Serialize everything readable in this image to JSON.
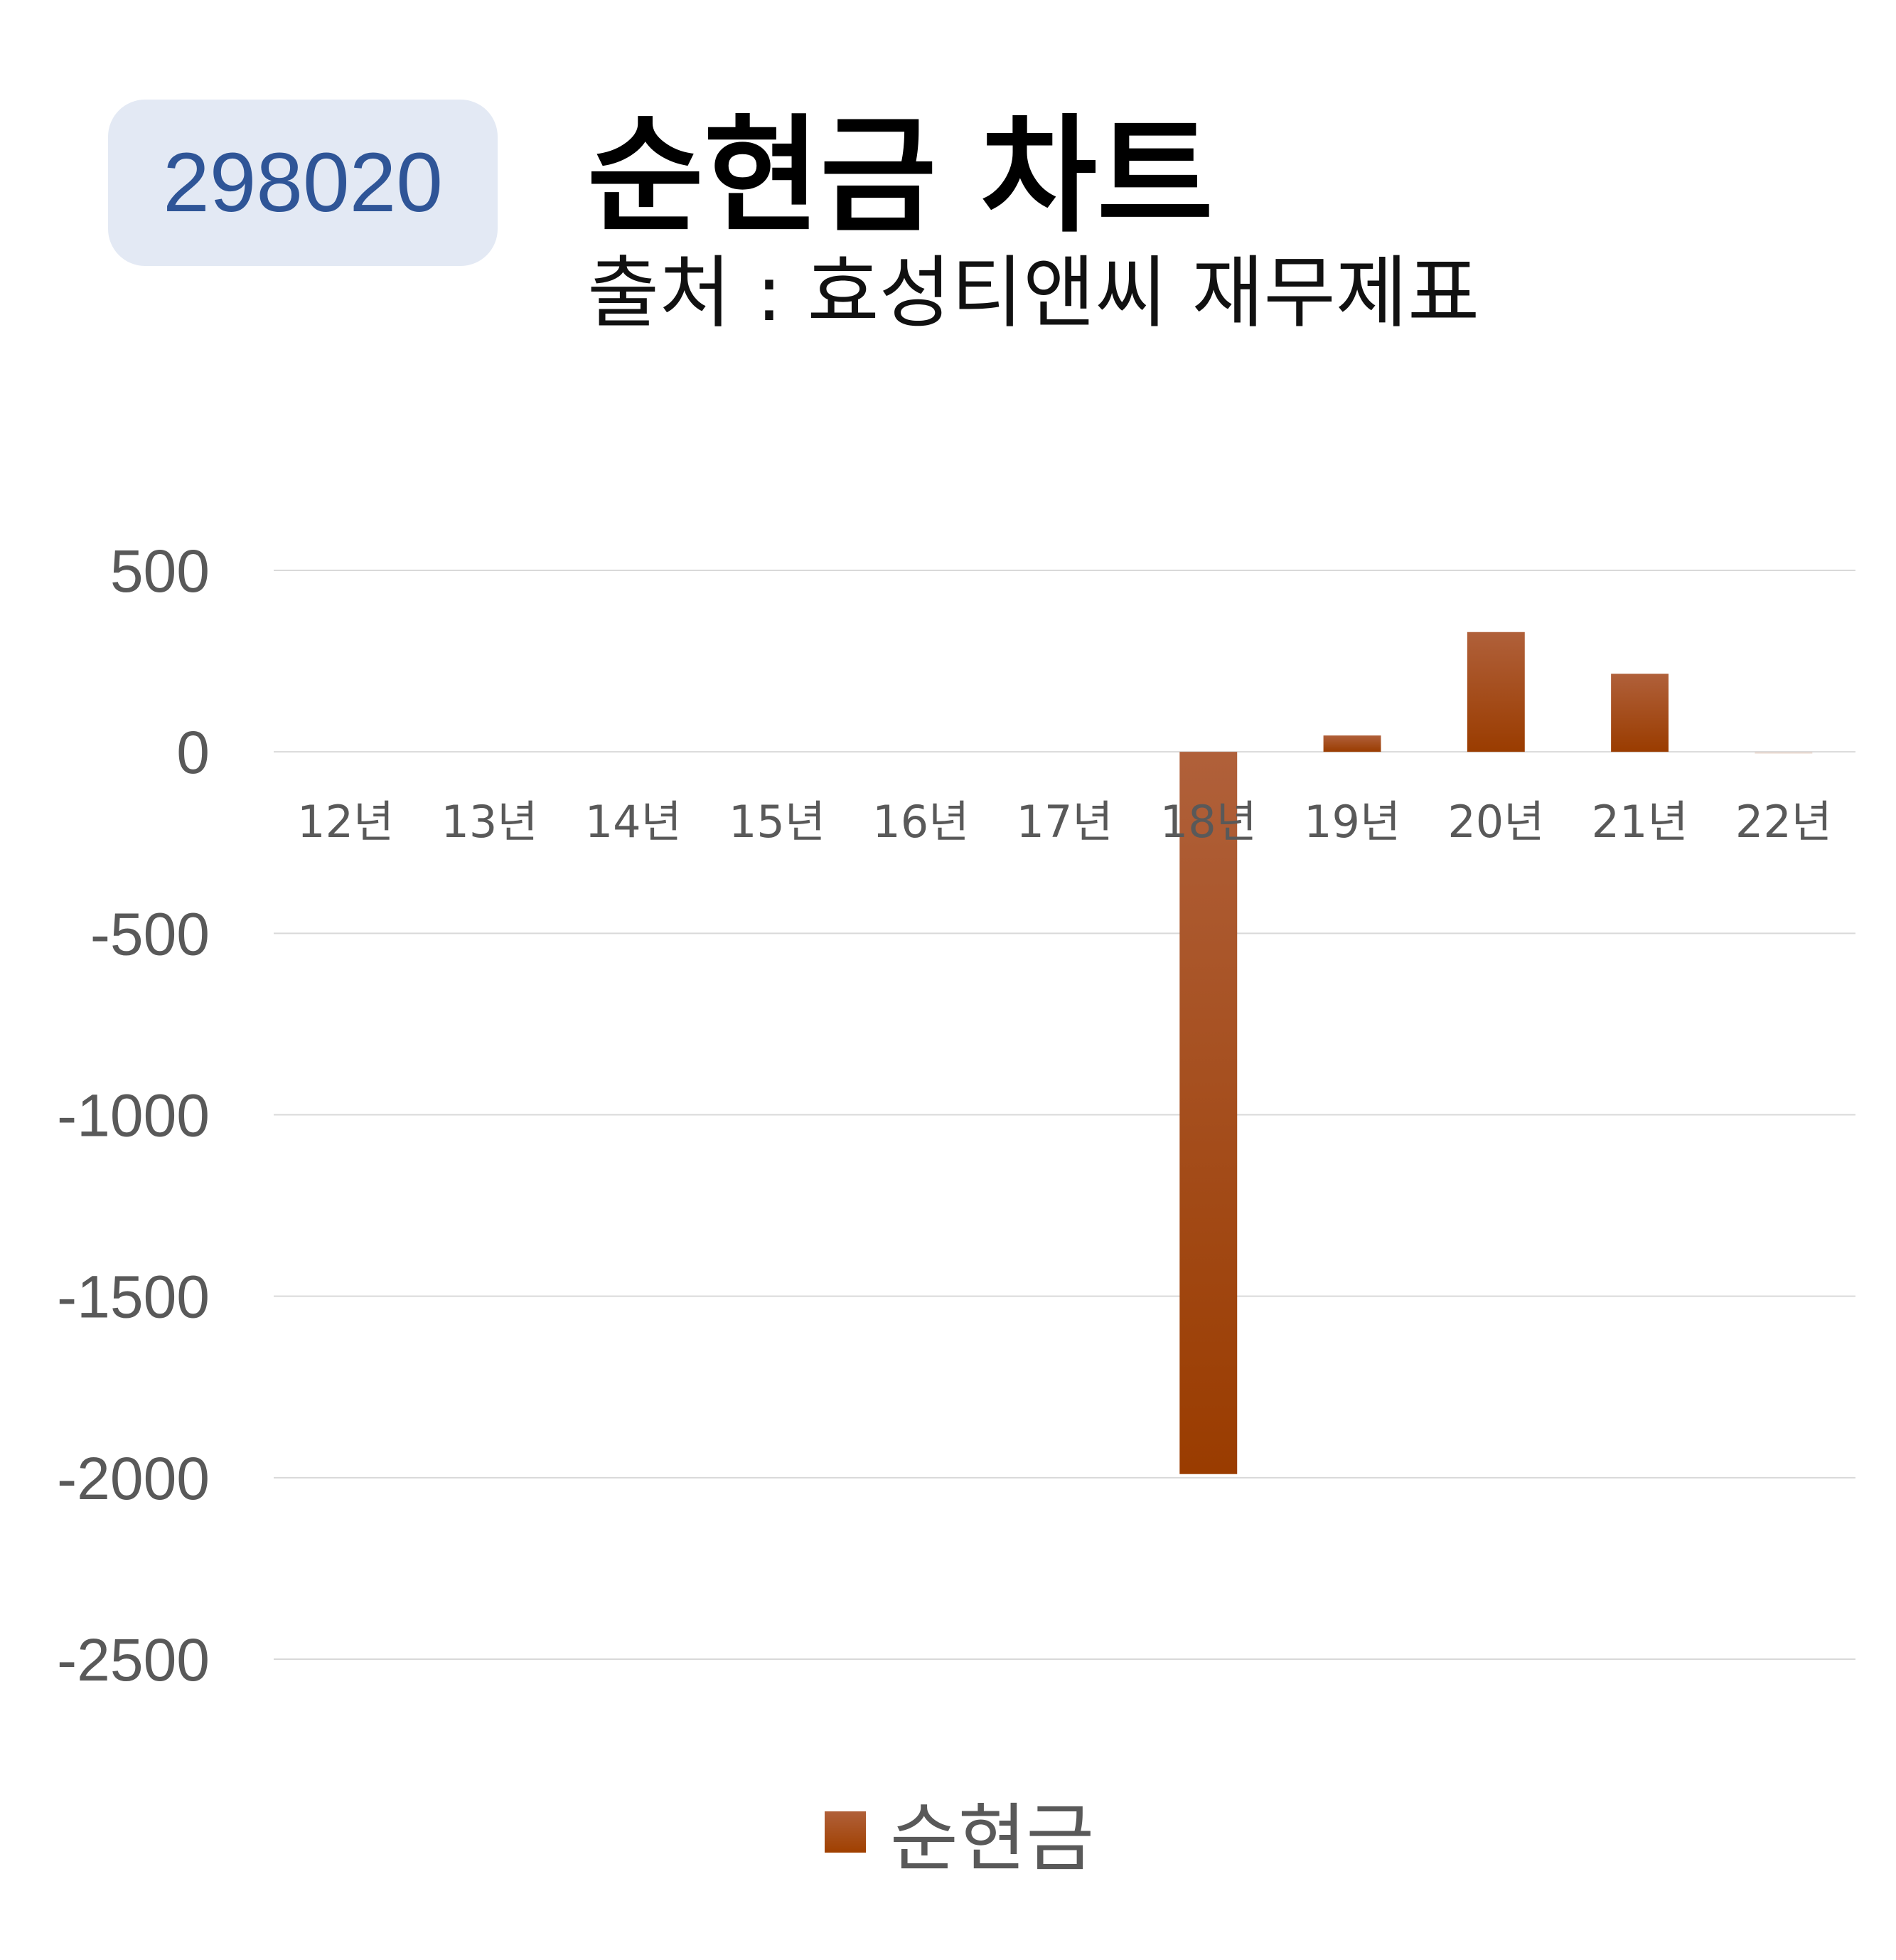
{
  "header": {
    "code": "298020",
    "title": "순현금 차트",
    "subtitle": "출처 : 효성티앤씨 재무제표"
  },
  "colors": {
    "bar_top": "#b0603a",
    "bar_bottom": "#9a3c00",
    "badge_bg": "#e3e9f4",
    "badge_text": "#2f5597",
    "grid": "#d9d9d9",
    "axis_text": "#595959"
  },
  "chart_data": {
    "type": "bar",
    "categories": [
      "12년",
      "13년",
      "14년",
      "15년",
      "16년",
      "17년",
      "18년",
      "19년",
      "20년",
      "21년",
      "22년"
    ],
    "series": [
      {
        "name": "순현금",
        "values": [
          0,
          0,
          0,
          0,
          0,
          0,
          -1990,
          45,
          330,
          215,
          -5
        ]
      }
    ],
    "ylim": [
      -2500,
      500
    ],
    "yticks": [
      500,
      0,
      -500,
      -1000,
      -1500,
      -2000,
      -2500
    ],
    "grid": true,
    "legend": "bottom"
  }
}
